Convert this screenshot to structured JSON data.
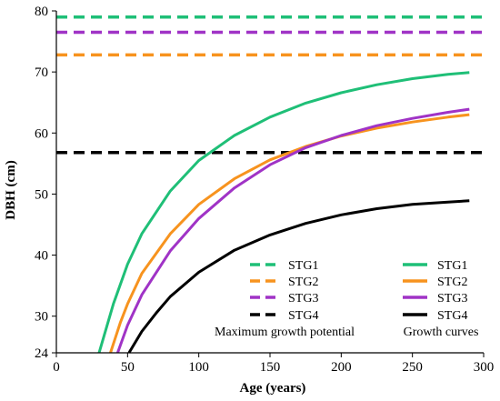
{
  "chart_data": {
    "type": "line",
    "xlabel": "Age (years)",
    "ylabel": "DBH (cm)",
    "xlim": [
      0,
      300
    ],
    "ylim": [
      24,
      80
    ],
    "xticks": [
      0,
      50,
      100,
      150,
      200,
      250,
      300
    ],
    "yticks": [
      24,
      30,
      40,
      50,
      60,
      70,
      80
    ],
    "grid": false,
    "colors": {
      "STG1": "#1fbf77",
      "STG2": "#f7931e",
      "STG3": "#a033c6",
      "STG4": "#000000"
    },
    "maximum_growth_potential": [
      {
        "name": "STG1",
        "value": 79.0
      },
      {
        "name": "STG2",
        "value": 72.8
      },
      {
        "name": "STG3",
        "value": 76.5
      },
      {
        "name": "STG4",
        "value": 56.8
      }
    ],
    "growth_curves": [
      {
        "name": "STG1",
        "x": [
          30,
          40,
          50,
          60,
          80,
          100,
          125,
          150,
          175,
          200,
          225,
          250,
          275,
          290
        ],
        "y": [
          24,
          32,
          38.5,
          43.5,
          50.5,
          55.5,
          59.6,
          62.6,
          64.9,
          66.6,
          67.9,
          68.9,
          69.6,
          69.9
        ]
      },
      {
        "name": "STG2",
        "x": [
          38,
          45,
          50,
          60,
          80,
          100,
          125,
          150,
          175,
          200,
          225,
          250,
          275,
          290
        ],
        "y": [
          24,
          29,
          32,
          37,
          43.5,
          48.3,
          52.5,
          55.6,
          57.8,
          59.5,
          60.8,
          61.8,
          62.6,
          63
        ]
      },
      {
        "name": "STG3",
        "x": [
          43,
          50,
          60,
          80,
          100,
          125,
          150,
          175,
          200,
          225,
          250,
          275,
          290
        ],
        "y": [
          24,
          28.5,
          33.5,
          40.7,
          46,
          51,
          54.8,
          57.6,
          59.6,
          61.2,
          62.4,
          63.4,
          63.9
        ]
      },
      {
        "name": "STG4",
        "x": [
          51,
          60,
          70,
          80,
          100,
          125,
          150,
          175,
          200,
          225,
          250,
          275,
          290
        ],
        "y": [
          24,
          27.5,
          30.5,
          33.2,
          37.2,
          40.8,
          43.3,
          45.2,
          46.6,
          47.6,
          48.3,
          48.7,
          48.9
        ]
      }
    ],
    "legend": {
      "position": "bottom-right",
      "left_caption": "Maximum growth potential",
      "right_caption": "Growth curves",
      "left_entries": [
        "STG1",
        "STG2",
        "STG3",
        "STG4"
      ],
      "right_entries": [
        "STG1",
        "STG2",
        "STG3",
        "STG4"
      ]
    }
  }
}
